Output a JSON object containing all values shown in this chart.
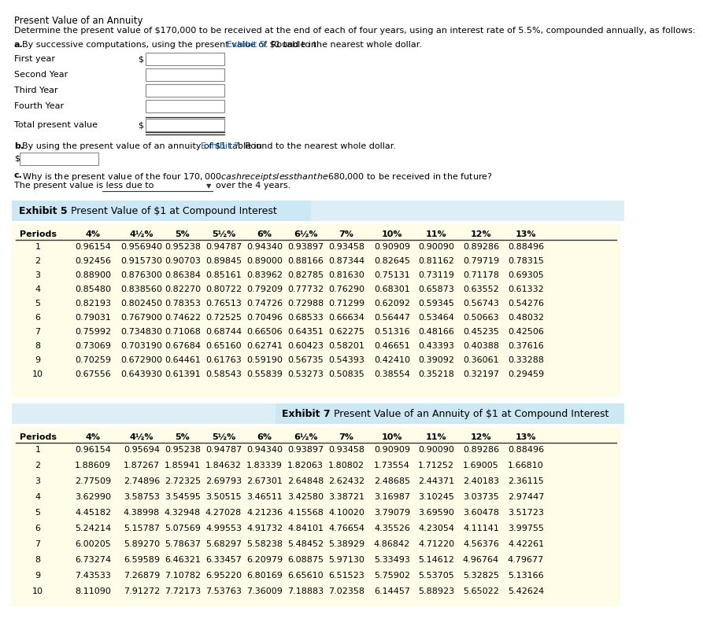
{
  "title": "Present Value of an Annuity",
  "description": "Determine the present value of $170,000 to be received at the end of each of four years, using an interest rate of 5.5%, compounded annually, as follows:",
  "section_a_label": "a.",
  "section_a_text": "By successive computations, using the present value of $1 table in",
  "section_a_link": "Exhibit 5",
  "section_a_text2": ". Round to the nearest whole dollar.",
  "rows_a": [
    "First year",
    "Second Year",
    "Third Year",
    "Fourth Year"
  ],
  "total_label": "Total present value",
  "section_b_label": "b.",
  "section_b_text": "By using the present value of an annuity of $1 table in",
  "section_b_link": "Exhibit 7",
  "section_b_text2": ". Round to the nearest whole dollar.",
  "section_c_label": "c.",
  "section_c_text": "Why is the present value of the four $170,000 cash receipts less than the $680,000 to be received in the future?",
  "section_c_text2": "The present value is less due to",
  "section_c_text3": "over the 4 years.",
  "exhibit5_title": "Exhibit 5",
  "exhibit5_subtitle": "Present Value of $1 at Compound Interest",
  "exhibit7_title": "Exhibit 7",
  "exhibit7_subtitle": "Present Value of an Annuity of $1 at Compound Interest",
  "col_headers": [
    "Periods",
    "4%",
    "4½%",
    "5%",
    "5½%",
    "6%",
    "6½%",
    "7%",
    "10%",
    "11%",
    "12%",
    "13%"
  ],
  "exhibit5_data": [
    [
      1,
      0.96154,
      0.95694,
      0.95238,
      0.94787,
      0.9434,
      0.93897,
      0.93458,
      0.90909,
      0.9009,
      0.89286,
      0.88496
    ],
    [
      2,
      0.92456,
      0.91573,
      0.90703,
      0.89845,
      0.89,
      0.88166,
      0.87344,
      0.82645,
      0.81162,
      0.79719,
      0.78315
    ],
    [
      3,
      0.889,
      0.8763,
      0.86384,
      0.85161,
      0.83962,
      0.82785,
      0.8163,
      0.75131,
      0.73119,
      0.71178,
      0.69305
    ],
    [
      4,
      0.8548,
      0.83856,
      0.8227,
      0.80722,
      0.79209,
      0.77732,
      0.7629,
      0.68301,
      0.65873,
      0.63552,
      0.61332
    ],
    [
      5,
      0.82193,
      0.80245,
      0.78353,
      0.76513,
      0.74726,
      0.72988,
      0.71299,
      0.62092,
      0.59345,
      0.56743,
      0.54276
    ],
    [
      6,
      0.79031,
      0.7679,
      0.74622,
      0.72525,
      0.70496,
      0.68533,
      0.66634,
      0.56447,
      0.53464,
      0.50663,
      0.48032
    ],
    [
      7,
      0.75992,
      0.73483,
      0.71068,
      0.68744,
      0.66506,
      0.64351,
      0.62275,
      0.51316,
      0.48166,
      0.45235,
      0.42506
    ],
    [
      8,
      0.73069,
      0.70319,
      0.67684,
      0.6516,
      0.62741,
      0.60423,
      0.58201,
      0.46651,
      0.43393,
      0.40388,
      0.37616
    ],
    [
      9,
      0.70259,
      0.6729,
      0.64461,
      0.61763,
      0.5919,
      0.56735,
      0.54393,
      0.4241,
      0.39092,
      0.36061,
      0.33288
    ],
    [
      10,
      0.67556,
      0.64393,
      0.61391,
      0.58543,
      0.55839,
      0.53273,
      0.50835,
      0.38554,
      0.35218,
      0.32197,
      0.29459
    ]
  ],
  "exhibit5_data_fmt": [
    [
      1,
      "0.96154",
      "0.956940",
      "0.95238",
      "0.94787",
      "0.94340",
      "0.93897",
      "0.93458",
      "0.90909",
      "0.90090",
      "0.89286",
      "0.88496"
    ],
    [
      2,
      "0.92456",
      "0.915730",
      "0.90703",
      "0.89845",
      "0.89000",
      "0.88166",
      "0.87344",
      "0.82645",
      "0.81162",
      "0.79719",
      "0.78315"
    ],
    [
      3,
      "0.88900",
      "0.876300",
      "0.86384",
      "0.85161",
      "0.83962",
      "0.82785",
      "0.81630",
      "0.75131",
      "0.73119",
      "0.71178",
      "0.69305"
    ],
    [
      4,
      "0.85480",
      "0.838560",
      "0.82270",
      "0.80722",
      "0.79209",
      "0.77732",
      "0.76290",
      "0.68301",
      "0.65873",
      "0.63552",
      "0.61332"
    ],
    [
      5,
      "0.82193",
      "0.802450",
      "0.78353",
      "0.76513",
      "0.74726",
      "0.72988",
      "0.71299",
      "0.62092",
      "0.59345",
      "0.56743",
      "0.54276"
    ],
    [
      6,
      "0.79031",
      "0.767900",
      "0.74622",
      "0.72525",
      "0.70496",
      "0.68533",
      "0.66634",
      "0.56447",
      "0.53464",
      "0.50663",
      "0.48032"
    ],
    [
      7,
      "0.75992",
      "0.734830",
      "0.71068",
      "0.68744",
      "0.66506",
      "0.64351",
      "0.62275",
      "0.51316",
      "0.48166",
      "0.45235",
      "0.42506"
    ],
    [
      8,
      "0.73069",
      "0.703190",
      "0.67684",
      "0.65160",
      "0.62741",
      "0.60423",
      "0.58201",
      "0.46651",
      "0.43393",
      "0.40388",
      "0.37616"
    ],
    [
      9,
      "0.70259",
      "0.672900",
      "0.64461",
      "0.61763",
      "0.59190",
      "0.56735",
      "0.54393",
      "0.42410",
      "0.39092",
      "0.36061",
      "0.33288"
    ],
    [
      10,
      "0.67556",
      "0.643930",
      "0.61391",
      "0.58543",
      "0.55839",
      "0.53273",
      "0.50835",
      "0.38554",
      "0.35218",
      "0.32197",
      "0.29459"
    ]
  ],
  "exhibit7_data_fmt": [
    [
      1,
      "0.96154",
      "0.95694",
      "0.95238",
      "0.94787",
      "0.94340",
      "0.93897",
      "0.93458",
      "0.90909",
      "0.90090",
      "0.89286",
      "0.88496"
    ],
    [
      2,
      "1.88609",
      "1.87267",
      "1.85941",
      "1.84632",
      "1.83339",
      "1.82063",
      "1.80802",
      "1.73554",
      "1.71252",
      "1.69005",
      "1.66810"
    ],
    [
      3,
      "2.77509",
      "2.74896",
      "2.72325",
      "2.69793",
      "2.67301",
      "2.64848",
      "2.62432",
      "2.48685",
      "2.44371",
      "2.40183",
      "2.36115"
    ],
    [
      4,
      "3.62990",
      "3.58753",
      "3.54595",
      "3.50515",
      "3.46511",
      "3.42580",
      "3.38721",
      "3.16987",
      "3.10245",
      "3.03735",
      "2.97447"
    ],
    [
      5,
      "4.45182",
      "4.38998",
      "4.32948",
      "4.27028",
      "4.21236",
      "4.15568",
      "4.10020",
      "3.79079",
      "3.69590",
      "3.60478",
      "3.51723"
    ],
    [
      6,
      "5.24214",
      "5.15787",
      "5.07569",
      "4.99553",
      "4.91732",
      "4.84101",
      "4.76654",
      "4.35526",
      "4.23054",
      "4.11141",
      "3.99755"
    ],
    [
      7,
      "6.00205",
      "5.89270",
      "5.78637",
      "5.68297",
      "5.58238",
      "5.48452",
      "5.38929",
      "4.86842",
      "4.71220",
      "4.56376",
      "4.42261"
    ],
    [
      8,
      "6.73274",
      "6.59589",
      "6.46321",
      "6.33457",
      "6.20979",
      "6.08875",
      "5.97130",
      "5.33493",
      "5.14612",
      "4.96764",
      "4.79677"
    ],
    [
      9,
      "7.43533",
      "7.26879",
      "7.10782",
      "6.95220",
      "6.80169",
      "6.65610",
      "6.51523",
      "5.75902",
      "5.53705",
      "5.32825",
      "5.13166"
    ],
    [
      10,
      "8.11090",
      "7.91272",
      "7.72173",
      "7.53763",
      "7.36009",
      "7.18883",
      "7.02358",
      "6.14457",
      "5.88923",
      "5.65022",
      "5.42624"
    ]
  ],
  "bg_white": "#ffffff",
  "bg_yellow": "#fffde7",
  "bg_blue_light": "#cce8f4",
  "bg_blue_header": "#b8d9ea",
  "text_black": "#000000",
  "text_link": "#0563C1",
  "box_border": "#aaaaaa",
  "table_line": "#333333"
}
